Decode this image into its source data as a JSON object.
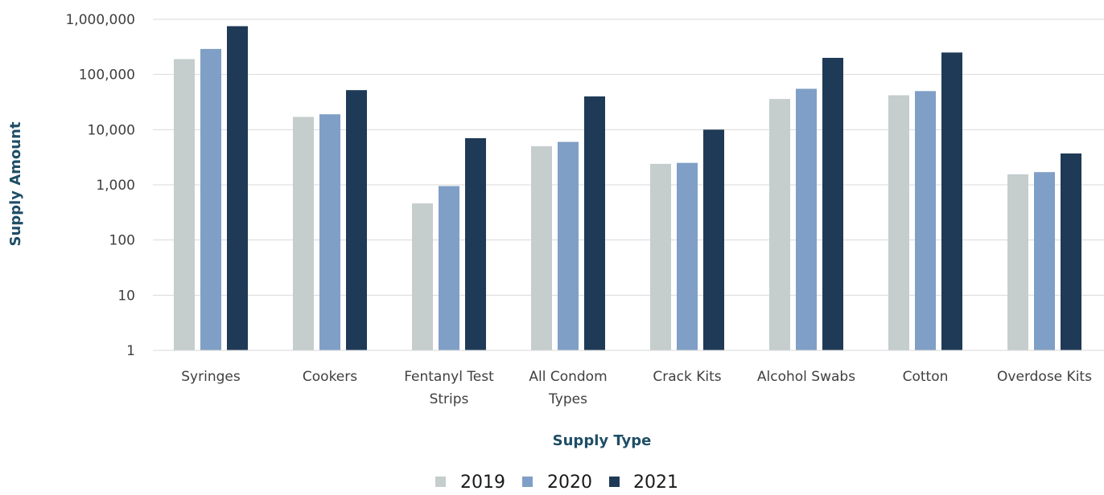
{
  "chart_data": {
    "type": "bar",
    "xlabel": "Supply Type",
    "ylabel": "Supply Amount",
    "y_scale": "log",
    "ylim": [
      1,
      1000000
    ],
    "y_ticks": [
      1,
      10,
      100,
      1000,
      10000,
      100000,
      1000000
    ],
    "y_tick_labels": [
      "1",
      "10",
      "100",
      "1,000",
      "10,000",
      "100,000",
      "1,000,000"
    ],
    "grid": true,
    "legend_position": "bottom",
    "categories": [
      [
        "Syringes"
      ],
      [
        "Cookers"
      ],
      [
        "Fentanyl Test",
        "Strips"
      ],
      [
        "All Condom",
        "Types"
      ],
      [
        "Crack Kits"
      ],
      [
        "Alcohol Swabs"
      ],
      [
        "Cotton"
      ],
      [
        "Overdose Kits"
      ]
    ],
    "series": [
      {
        "name": "2019",
        "color": "#c5cdcd",
        "values": [
          190000,
          17000,
          460,
          5000,
          2400,
          36000,
          42000,
          1550
        ]
      },
      {
        "name": "2020",
        "color": "#7f9fc6",
        "values": [
          290000,
          19000,
          950,
          6000,
          2500,
          55000,
          50000,
          1700
        ]
      },
      {
        "name": "2021",
        "color": "#1f3a57",
        "values": [
          750000,
          52000,
          7000,
          40000,
          10000,
          200000,
          250000,
          3700
        ]
      }
    ]
  }
}
